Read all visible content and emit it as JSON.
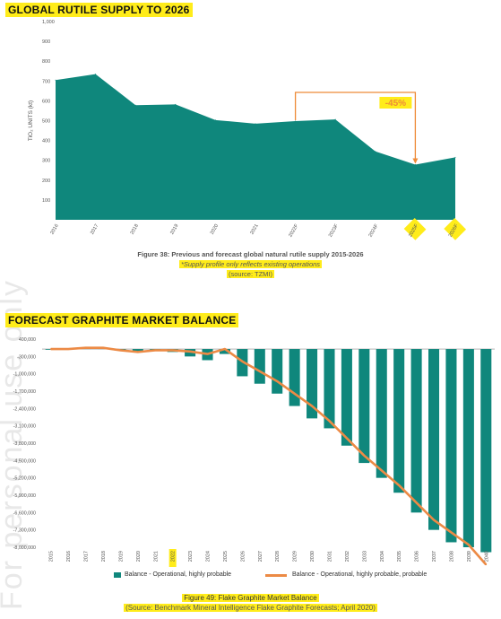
{
  "chart_data": [
    {
      "type": "area",
      "title": "GLOBAL RUTILE SUPPLY TO 2026",
      "ylabel": "TiO₂ UNITS (kt)",
      "ylim": [
        0,
        1000
      ],
      "yticks": [
        "100",
        "200",
        "300",
        "400",
        "500",
        "600",
        "700",
        "800",
        "900",
        "1,000"
      ],
      "x": [
        "2016",
        "2017",
        "2018",
        "2019",
        "2020",
        "2021",
        "2022F",
        "2023F",
        "2024F",
        "2025F",
        "2026F"
      ],
      "values": [
        705,
        735,
        578,
        582,
        503,
        485,
        498,
        506,
        345,
        278,
        315
      ],
      "color": "#0f877c",
      "annotation": {
        "label": "-45%",
        "from": "2022F",
        "to": "2025F",
        "color": "#ee8b38"
      },
      "caption": {
        "figure": "Figure 38: Previous and forecast global natural rutile supply 2015-2026",
        "note": "*Supply profile only reflects existing operations",
        "source": "(source: TZMI)"
      }
    },
    {
      "type": "bar",
      "title": "FORECAST GRAPHITE MARKET BALANCE",
      "categories": [
        "2015",
        "2016",
        "2017",
        "2018",
        "2019",
        "2020",
        "2021",
        "2022",
        "2023",
        "2024",
        "2025",
        "2026",
        "2027",
        "2028",
        "2029",
        "2030",
        "2031",
        "2032",
        "2033",
        "2034",
        "2035",
        "2036",
        "2037",
        "2038",
        "2039",
        "2040"
      ],
      "series": [
        {
          "name": "Balance - Operational, highly probable",
          "kind": "bar",
          "color": "#0f877c",
          "values": [
            0,
            0,
            50000,
            50000,
            -50000,
            -120000,
            -50000,
            -120000,
            -300000,
            -450000,
            -200000,
            -1100000,
            -1400000,
            -1800000,
            -2300000,
            -2800000,
            -3200000,
            -3900000,
            -4600000,
            -5200000,
            -5800000,
            -6600000,
            -7300000,
            -7800000,
            -8000000,
            -8200000
          ]
        },
        {
          "name": "Balance - Operational, highly probable, probable",
          "kind": "line",
          "color": "#ec8a45",
          "values": [
            0,
            0,
            50000,
            50000,
            -50000,
            -120000,
            -50000,
            -50000,
            -100000,
            -200000,
            0,
            -500000,
            -900000,
            -1300000,
            -1800000,
            -2300000,
            -2900000,
            -3600000,
            -4300000,
            -4900000,
            -5500000,
            -6200000,
            -6900000,
            -7400000,
            -7900000,
            -8700000
          ]
        }
      ],
      "yticks": [
        "400,000",
        "-300,000",
        "-1,000,000",
        "-1,700,000",
        "-2,400,000",
        "-3,100,000",
        "-3,800,000",
        "-4,500,000",
        "-5,200,000",
        "-5,900,000",
        "-6,600,000",
        "-7,300,000",
        "-8,000,000"
      ],
      "ylim": [
        -8000000,
        400000
      ],
      "legend_position": "bottom",
      "caption": {
        "figure": "Figure 49: Flake Graphite Market Balance",
        "source": "(Source: Benchmark Mineral Intelligence Flake Graphite Forecasts; April 2020)"
      }
    }
  ],
  "watermark": "For personal use only"
}
